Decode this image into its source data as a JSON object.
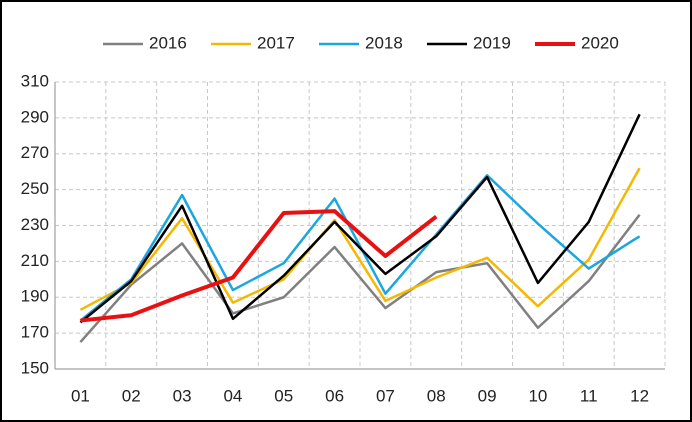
{
  "chart_data": {
    "type": "line",
    "categories": [
      "01",
      "02",
      "03",
      "04",
      "05",
      "06",
      "07",
      "08",
      "09",
      "10",
      "11",
      "12"
    ],
    "series": [
      {
        "name": "2016",
        "color": "#808080",
        "values": [
          165,
          197,
          220,
          181,
          190,
          218,
          184,
          204,
          209,
          173,
          199,
          236
        ]
      },
      {
        "name": "2017",
        "color": "#f5b800",
        "values": [
          183,
          198,
          234,
          187,
          200,
          233,
          188,
          201,
          212,
          185,
          211,
          262
        ]
      },
      {
        "name": "2018",
        "color": "#1aa7e0",
        "values": [
          177,
          200,
          247,
          194,
          209,
          245,
          192,
          225,
          258,
          231,
          206,
          224
        ]
      },
      {
        "name": "2019",
        "color": "#000000",
        "values": [
          176,
          199,
          241,
          178,
          202,
          232,
          203,
          224,
          257,
          198,
          232,
          292
        ]
      },
      {
        "name": "2020",
        "color": "#e81010",
        "values": [
          177,
          180,
          191,
          201,
          237,
          238,
          213,
          235,
          null,
          null,
          null,
          null
        ]
      }
    ],
    "ylim": [
      150,
      310
    ],
    "yticks": [
      150,
      170,
      190,
      210,
      230,
      250,
      270,
      290,
      310
    ],
    "grid": true,
    "legend": "top"
  }
}
